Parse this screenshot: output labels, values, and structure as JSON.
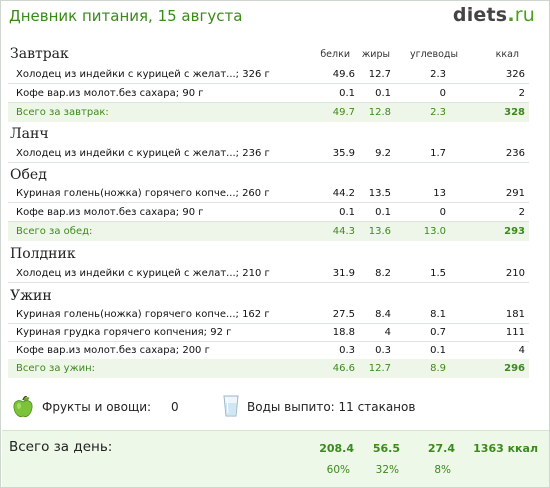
{
  "header": {
    "title": "Дневник питания, 15 августа",
    "logo_main": "diets",
    "logo_dot": ".",
    "logo_tld": "ru"
  },
  "columns": {
    "protein": "белки",
    "fat": "жиры",
    "carbs": "углеводы",
    "kcal": "ккал"
  },
  "meals": {
    "breakfast": {
      "name": "Завтрак",
      "rows": [
        [
          "Холодец из индейки с курицей с желат...; 326 г",
          "49.6",
          "12.7",
          "2.3",
          "326"
        ],
        [
          "Кофе вар.из молот.без сахара; 90 г",
          "0.1",
          "0.1",
          "0",
          "2"
        ]
      ],
      "total": [
        "Всего за завтрак:",
        "49.7",
        "12.8",
        "2.3",
        "328"
      ]
    },
    "lunch": {
      "name": "Ланч",
      "rows": [
        [
          "Холодец из индейки с курицей с желат...; 236 г",
          "35.9",
          "9.2",
          "1.7",
          "236"
        ]
      ]
    },
    "dinner": {
      "name": "Обед",
      "rows": [
        [
          "Куриная голень(ножка) горячего копче...; 260 г",
          "44.2",
          "13.5",
          "13",
          "291"
        ],
        [
          "Кофе вар.из молот.без сахара; 90 г",
          "0.1",
          "0.1",
          "0",
          "2"
        ]
      ],
      "total": [
        "Всего за обед:",
        "44.3",
        "13.6",
        "13.0",
        "293"
      ]
    },
    "snack": {
      "name": "Полдник",
      "rows": [
        [
          "Холодец из индейки с курицей с желат...; 210 г",
          "31.9",
          "8.2",
          "1.5",
          "210"
        ]
      ]
    },
    "supper": {
      "name": "Ужин",
      "rows": [
        [
          "Куриная голень(ножка) горячего копче...; 162 г",
          "27.5",
          "8.4",
          "8.1",
          "181"
        ],
        [
          "Куриная грудка горячего копчения; 92 г",
          "18.8",
          "4",
          "0.7",
          "111"
        ],
        [
          "Кофе вар.из молот.без сахара; 200 г",
          "0.3",
          "0.3",
          "0.1",
          "4"
        ]
      ],
      "total": [
        "Всего за ужин:",
        "46.6",
        "12.7",
        "8.9",
        "296"
      ]
    }
  },
  "extras": {
    "fruits_label": "Фрукты и овощи:",
    "fruits_value": "0",
    "water_label": "Воды выпито: 11 стаканов",
    "apple_icon": "apple-icon",
    "glass_icon": "water-glass-icon"
  },
  "summary": {
    "label": "Всего за день:",
    "totals": [
      "208.4",
      "56.5",
      "27.4",
      "1363 ккал"
    ],
    "percents": [
      "60%",
      "32%",
      "8%"
    ]
  },
  "colors": {
    "accent_green": "#3c8a1c",
    "total_row_bg": "#eef6ea",
    "summary_bg": "#edf8e8"
  }
}
